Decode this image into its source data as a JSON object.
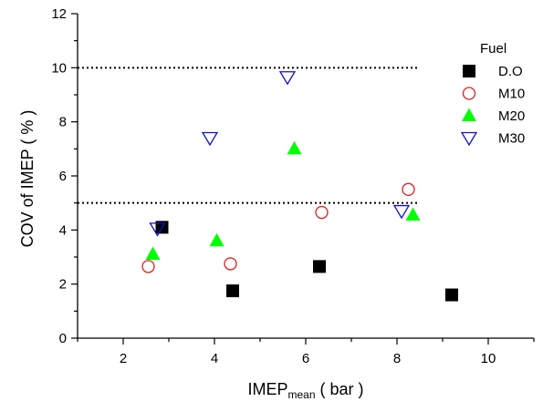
{
  "chart_data": {
    "type": "scatter",
    "xlabel": "IMEP",
    "xlabel_subscript": "mean",
    "xlabel_unit": " ( bar )",
    "ylabel": "COV of IMEP ( % )",
    "xlim": [
      1,
      11
    ],
    "ylim": [
      0,
      12
    ],
    "xticks": [
      2,
      4,
      6,
      8,
      10
    ],
    "yticks": [
      0,
      2,
      4,
      6,
      8,
      10,
      12
    ],
    "grid": false,
    "legend_title": "Fuel",
    "legend_position": "top-right",
    "reference_lines": [
      {
        "y": 10,
        "style": "dotted",
        "x_from": 1,
        "x_to": 8.45
      },
      {
        "y": 5,
        "style": "dotted",
        "x_from": 1,
        "x_to": 8.45
      }
    ],
    "series": [
      {
        "name": "D.O",
        "marker": "square-filled",
        "color": "#000000",
        "points": [
          [
            2.85,
            4.1
          ],
          [
            4.4,
            1.75
          ],
          [
            6.3,
            2.65
          ],
          [
            9.2,
            1.6
          ]
        ]
      },
      {
        "name": "M10",
        "marker": "circle-open",
        "color": "#e02020",
        "points": [
          [
            2.55,
            2.65
          ],
          [
            4.35,
            2.75
          ],
          [
            6.35,
            4.65
          ],
          [
            8.25,
            5.5
          ]
        ]
      },
      {
        "name": "M20",
        "marker": "triangle-up-filled",
        "color": "#00ff00",
        "points": [
          [
            2.65,
            3.1
          ],
          [
            4.05,
            3.6
          ],
          [
            5.75,
            7.0
          ],
          [
            8.35,
            4.55
          ]
        ]
      },
      {
        "name": "M30",
        "marker": "triangle-down-open",
        "color": "#1010d0",
        "points": [
          [
            2.75,
            4.05
          ],
          [
            3.9,
            7.4
          ],
          [
            5.6,
            9.65
          ],
          [
            8.1,
            4.7
          ]
        ]
      }
    ]
  }
}
